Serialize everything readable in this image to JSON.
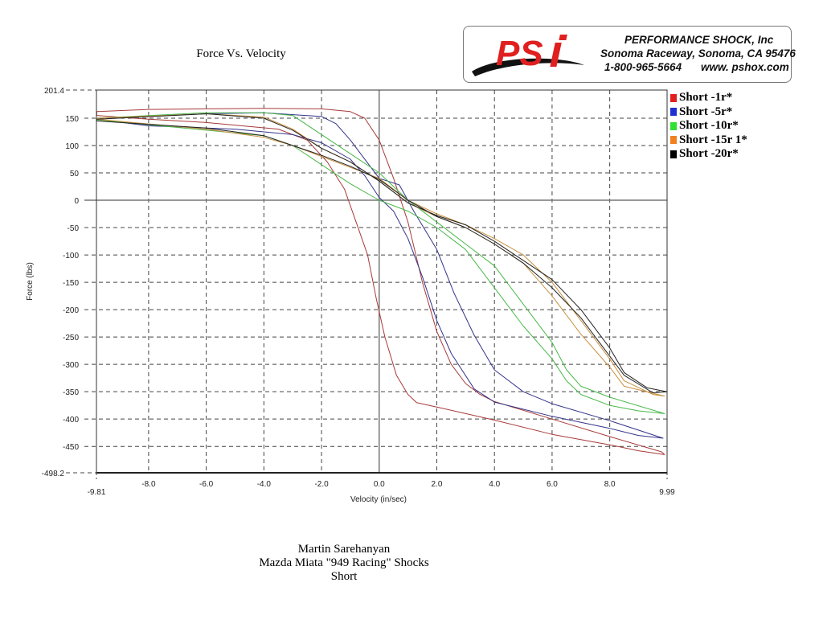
{
  "logo": {
    "brand": "PSi",
    "company": "PERFORMANCE  SHOCK,  Inc",
    "address": "Sonoma Raceway, Sonoma, CA 95476",
    "phone": "1-800-965-5664",
    "website": "www. pshox.com"
  },
  "footer": {
    "line1": "Martin Sarehanyan",
    "line2": "Mazda Miata \"949 Racing\" Shocks",
    "line3": "Short"
  },
  "chart_data": {
    "type": "line",
    "title": "Force Vs. Velocity",
    "xlabel": "Velocity (in/sec)",
    "ylabel": "Force (lbs)",
    "xlim": [
      -9.81,
      9.99
    ],
    "ylim": [
      -498.2,
      201.4
    ],
    "xticks": [
      -8.0,
      -6.0,
      -4.0,
      -2.0,
      0.0,
      2.0,
      4.0,
      6.0,
      8.0
    ],
    "xtick_labels": [
      "-8.0",
      "-6.0",
      "-4.0",
      "-2.0",
      "0.0",
      "2.0",
      "4.0",
      "6.0",
      "8.0"
    ],
    "xlim_labels": [
      "-9.81",
      "9.99"
    ],
    "yticks": [
      150,
      100,
      50,
      0,
      -50,
      -100,
      -150,
      -200,
      -250,
      -300,
      -350,
      -400,
      -450
    ],
    "ylim_labels": [
      "201.4",
      "-498.2"
    ],
    "grid": true,
    "legend_position": "right",
    "series": [
      {
        "name": "Short -1r*",
        "color": "#e02020",
        "line_color": "#a83a3a",
        "points": [
          [
            -9.8,
            162
          ],
          [
            -8,
            166
          ],
          [
            -4,
            168
          ],
          [
            -2,
            167
          ],
          [
            -1,
            162
          ],
          [
            -0.5,
            150
          ],
          [
            0,
            110
          ],
          [
            0.5,
            40
          ],
          [
            1,
            -40
          ],
          [
            1.5,
            -150
          ],
          [
            2,
            -240
          ],
          [
            2.5,
            -300
          ],
          [
            3,
            -335
          ],
          [
            3.5,
            -355
          ],
          [
            4,
            -368
          ],
          [
            6,
            -400
          ],
          [
            8,
            -432
          ],
          [
            9.8,
            -460
          ],
          [
            9.9,
            -465
          ],
          [
            9,
            -458
          ],
          [
            8,
            -447
          ],
          [
            6,
            -428
          ],
          [
            4,
            -402
          ],
          [
            2,
            -378
          ],
          [
            1.3,
            -370
          ],
          [
            1,
            -355
          ],
          [
            0.6,
            -320
          ],
          [
            0.2,
            -250
          ],
          [
            -0.1,
            -180
          ],
          [
            -0.4,
            -100
          ],
          [
            -0.8,
            -40
          ],
          [
            -1.2,
            20
          ],
          [
            -1.8,
            70
          ],
          [
            -2.5,
            110
          ],
          [
            -3.5,
            130
          ],
          [
            -6,
            142
          ],
          [
            -8,
            148
          ],
          [
            -9.8,
            155
          ],
          [
            -9.8,
            162
          ]
        ]
      },
      {
        "name": "Short -5r*",
        "color": "#2030d0",
        "line_color": "#34348a",
        "points": [
          [
            -9.8,
            150
          ],
          [
            -6,
            158
          ],
          [
            -4,
            160
          ],
          [
            -2,
            153
          ],
          [
            -1.5,
            140
          ],
          [
            -1,
            110
          ],
          [
            0,
            40
          ],
          [
            0.7,
            28
          ],
          [
            1.2,
            -20
          ],
          [
            2,
            -90
          ],
          [
            2.6,
            -170
          ],
          [
            3.3,
            -247
          ],
          [
            4,
            -310
          ],
          [
            5,
            -350
          ],
          [
            6,
            -372
          ],
          [
            8,
            -403
          ],
          [
            9.85,
            -435
          ],
          [
            9,
            -430
          ],
          [
            8,
            -417
          ],
          [
            6,
            -395
          ],
          [
            4,
            -369
          ],
          [
            3.3,
            -345
          ],
          [
            2.5,
            -280
          ],
          [
            2,
            -220
          ],
          [
            1.5,
            -140
          ],
          [
            1,
            -70
          ],
          [
            0.5,
            -20
          ],
          [
            0,
            5
          ],
          [
            -0.5,
            45
          ],
          [
            -1,
            75
          ],
          [
            -2,
            105
          ],
          [
            -3,
            120
          ],
          [
            -5,
            130
          ],
          [
            -8,
            136
          ],
          [
            -9.8,
            148
          ],
          [
            -9.8,
            150
          ]
        ]
      },
      {
        "name": "Short -10r*",
        "color": "#30e030",
        "line_color": "#48b848",
        "points": [
          [
            -9.8,
            150
          ],
          [
            -6,
            160
          ],
          [
            -4,
            160
          ],
          [
            -3,
            155
          ],
          [
            -2,
            120
          ],
          [
            -1,
            85
          ],
          [
            0,
            50
          ],
          [
            1,
            0
          ],
          [
            2,
            -40
          ],
          [
            3,
            -80
          ],
          [
            4,
            -120
          ],
          [
            5,
            -190
          ],
          [
            6,
            -260
          ],
          [
            6.5,
            -310
          ],
          [
            7,
            -340
          ],
          [
            8,
            -360
          ],
          [
            9.9,
            -390
          ],
          [
            9,
            -385
          ],
          [
            8,
            -375
          ],
          [
            7,
            -355
          ],
          [
            6.5,
            -330
          ],
          [
            6,
            -290
          ],
          [
            5,
            -230
          ],
          [
            4,
            -160
          ],
          [
            3,
            -90
          ],
          [
            2,
            -50
          ],
          [
            1,
            -20
          ],
          [
            0,
            0
          ],
          [
            -1,
            30
          ],
          [
            -2,
            65
          ],
          [
            -3,
            100
          ],
          [
            -4,
            118
          ],
          [
            -6,
            128
          ],
          [
            -9.8,
            147
          ],
          [
            -9.8,
            150
          ]
        ]
      },
      {
        "name": "Short -15r 1*",
        "color": "#f08020",
        "line_color": "#c89040",
        "points": [
          [
            -9.8,
            150
          ],
          [
            -6,
            158
          ],
          [
            -4,
            152
          ],
          [
            -3,
            130
          ],
          [
            -2,
            95
          ],
          [
            -1,
            70
          ],
          [
            0,
            35
          ],
          [
            1,
            -5
          ],
          [
            2,
            -30
          ],
          [
            3,
            -50
          ],
          [
            4,
            -80
          ],
          [
            5,
            -115
          ],
          [
            6,
            -175
          ],
          [
            7,
            -245
          ],
          [
            8,
            -305
          ],
          [
            8.5,
            -340
          ],
          [
            9.9,
            -358
          ],
          [
            9.5,
            -355
          ],
          [
            8.5,
            -330
          ],
          [
            8,
            -290
          ],
          [
            7,
            -220
          ],
          [
            6,
            -150
          ],
          [
            5,
            -100
          ],
          [
            4,
            -70
          ],
          [
            3,
            -45
          ],
          [
            2,
            -25
          ],
          [
            1,
            0
          ],
          [
            0,
            40
          ],
          [
            -1,
            60
          ],
          [
            -2,
            80
          ],
          [
            -3,
            100
          ],
          [
            -4,
            115
          ],
          [
            -6,
            130
          ],
          [
            -9.8,
            148
          ],
          [
            -9.8,
            150
          ]
        ]
      },
      {
        "name": "Short -20r*",
        "color": "#000000",
        "line_color": "#222222",
        "points": [
          [
            -9.8,
            148
          ],
          [
            -6,
            158
          ],
          [
            -4,
            150
          ],
          [
            -3,
            128
          ],
          [
            -2,
            95
          ],
          [
            -1,
            70
          ],
          [
            0,
            35
          ],
          [
            1,
            -5
          ],
          [
            2,
            -28
          ],
          [
            3,
            -45
          ],
          [
            4,
            -75
          ],
          [
            5,
            -110
          ],
          [
            6,
            -145
          ],
          [
            7,
            -200
          ],
          [
            8,
            -270
          ],
          [
            8.5,
            -315
          ],
          [
            9.3,
            -343
          ],
          [
            9.99,
            -350
          ],
          [
            9.5,
            -352
          ],
          [
            8.5,
            -320
          ],
          [
            8,
            -285
          ],
          [
            7,
            -215
          ],
          [
            6,
            -160
          ],
          [
            5,
            -115
          ],
          [
            4,
            -80
          ],
          [
            3,
            -50
          ],
          [
            2,
            -30
          ],
          [
            1,
            0
          ],
          [
            0,
            38
          ],
          [
            -1,
            62
          ],
          [
            -2,
            82
          ],
          [
            -3,
            100
          ],
          [
            -4,
            118
          ],
          [
            -6,
            132
          ],
          [
            -9.8,
            145
          ],
          [
            -9.8,
            148
          ]
        ]
      }
    ]
  }
}
